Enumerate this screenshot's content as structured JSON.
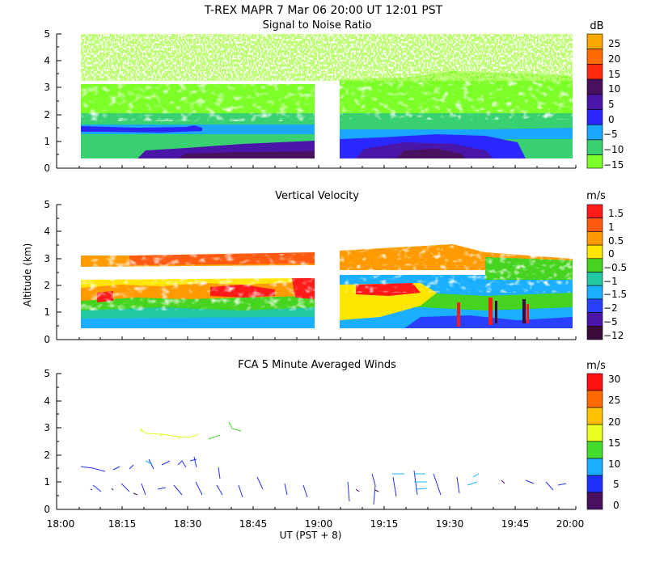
{
  "header": {
    "title": "T-REX   MAPR   7 Mar 06   20:00 UT   12:01   PST"
  },
  "x_axis": {
    "label": "UT  (PST + 8)",
    "ticks": [
      "18:00",
      "18:15",
      "18:30",
      "18:45",
      "19:00",
      "19:15",
      "19:30",
      "19:45",
      "20:00"
    ]
  },
  "y_axis_label": "Altitude (km)",
  "chart_data": [
    {
      "type": "heatmap",
      "title": "Signal to Noise Ratio",
      "units": "dB",
      "xlim_minutes_after_1800": [
        0,
        120
      ],
      "ylim_km": [
        0,
        5
      ],
      "y_ticks": [
        "0",
        "1",
        "2",
        "3",
        "4",
        "5"
      ],
      "colorbar_labels": [
        "25",
        "20",
        "15",
        "10",
        "5",
        "0",
        "−5",
        "−10",
        "−15"
      ],
      "colorbar_colors": [
        "#f9a800",
        "#ff6a00",
        "#ff2a10",
        "#4a1060",
        "#4a16a8",
        "#2a28ff",
        "#1aa8ff",
        "#38d070",
        "#7cff26"
      ],
      "data_gap_minutes": [
        60,
        65
      ]
    },
    {
      "type": "heatmap",
      "title": "Vertical Velocity",
      "units": "m/s",
      "xlim_minutes_after_1800": [
        0,
        120
      ],
      "ylim_km": [
        0,
        5
      ],
      "y_ticks": [
        "0",
        "1",
        "2",
        "3",
        "4",
        "5"
      ],
      "colorbar_labels": [
        "1.5",
        "1",
        "0.5",
        "0",
        "−0.5",
        "−1",
        "−1.5",
        "−2",
        "−5",
        "−12"
      ],
      "colorbar_colors": [
        "#ff1a1a",
        "#ff5a10",
        "#ff9a00",
        "#ffe600",
        "#46d420",
        "#22c8a0",
        "#1ab0ff",
        "#2a40ff",
        "#4a16a8",
        "#3a0a3a"
      ],
      "data_gap_minutes": [
        60,
        65
      ]
    },
    {
      "type": "scatter",
      "title": "FCA 5 Minute Averaged Winds",
      "units": "m/s",
      "xlim_minutes_after_1800": [
        0,
        120
      ],
      "ylim_km": [
        0,
        5
      ],
      "y_ticks": [
        "0",
        "1",
        "2",
        "3",
        "4",
        "5"
      ],
      "colorbar_labels": [
        "30",
        "25",
        "20",
        "15",
        "10",
        "5",
        "0"
      ],
      "colorbar_colors": [
        "#ff1010",
        "#ff6a00",
        "#ffc000",
        "#e8ff20",
        "#44dc2c",
        "#1ab0ff",
        "#2030ff",
        "#4a1060"
      ]
    }
  ]
}
